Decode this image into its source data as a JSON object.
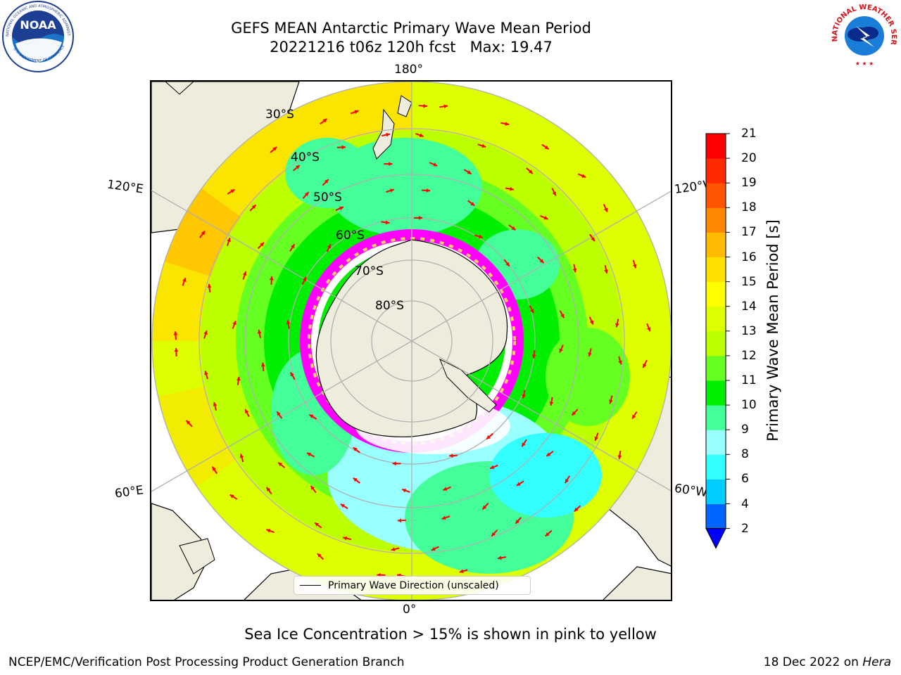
{
  "title": {
    "line1": "GEFS MEAN Antarctic Primary Wave Mean Period",
    "line2": "20221216 t06z 120h fcst   Max: 19.47"
  },
  "logos": {
    "left": {
      "name": "NOAA",
      "ring_text": "NATIONAL OCEANIC AND ATMOSPHERIC ADMINISTRATION",
      "bottom_text": "U.S. DEPARTMENT OF COMMERCE"
    },
    "right": {
      "ring_text": "NATIONAL WEATHER SERVICE"
    }
  },
  "map": {
    "projection": "south-polar-stereographic",
    "longitude_labels": {
      "top": "180°",
      "bottom": "0°",
      "upper_left": "120°E",
      "upper_right": "120°W",
      "lower_left": "60°E",
      "lower_right": "60°W"
    },
    "latitude_labels": [
      "30°S",
      "40°S",
      "50°S",
      "60°S",
      "70°S",
      "80°S"
    ],
    "colors": {
      "land": "#eeecdc",
      "arrow": "#ff0000",
      "gridline": "#b0b0b0",
      "sea_ice": [
        "#ff00ff",
        "#ff66cc",
        "#ffffff",
        "#ffcc66"
      ]
    },
    "legend": {
      "label": "Primary Wave Direction (unscaled)"
    }
  },
  "colorbar": {
    "label": "Primary Wave Mean Period [s]",
    "ticks": [
      "2",
      "4",
      "6",
      "8",
      "9",
      "10",
      "11",
      "12",
      "13",
      "14",
      "15",
      "16",
      "17",
      "18",
      "19",
      "20",
      "21"
    ],
    "colors": [
      "#0066ff",
      "#00ccff",
      "#33ffff",
      "#99ffff",
      "#44ff99",
      "#00ee00",
      "#66ff22",
      "#bbff00",
      "#ddff00",
      "#ffff00",
      "#ffe000",
      "#ffbb00",
      "#ff8800",
      "#ff5500",
      "#ff2a00",
      "#ff0000"
    ],
    "under_color": "#0000ff"
  },
  "note": "Sea Ice Concentration > 15% is shown in pink to yellow",
  "footer": {
    "left": "NCEP/EMC/Verification Post Processing Product Generation Branch",
    "right_date": "18 Dec 2022 on",
    "right_machine": "Hera"
  }
}
